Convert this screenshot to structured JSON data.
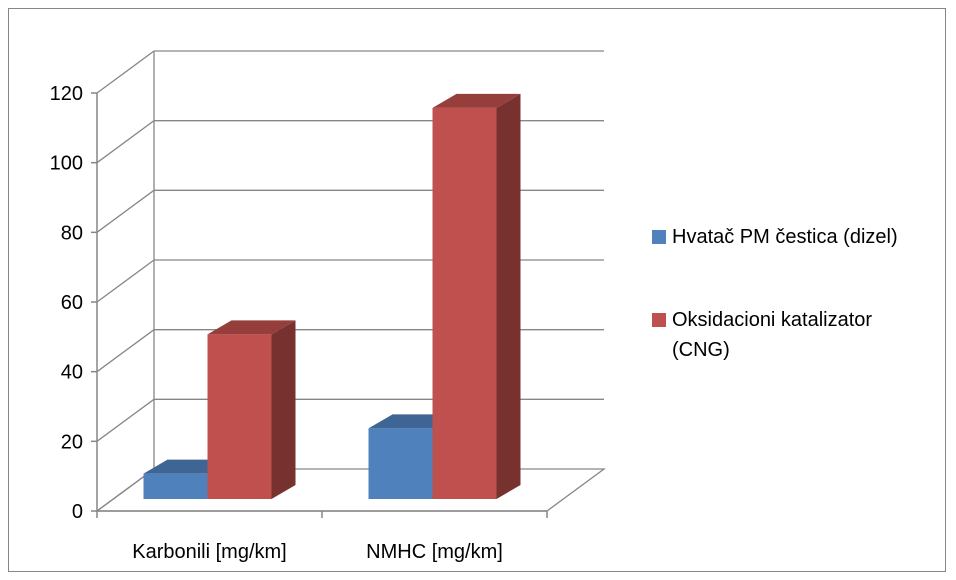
{
  "chart_data": {
    "type": "bar",
    "style": "3d-clustered-column",
    "categories": [
      "Karbonili [mg/km]",
      "NMHC [mg/km]"
    ],
    "series": [
      {
        "name": "Hvatač PM čestica (dizel)",
        "values": [
          9,
          22
        ],
        "color": "#4F81BD"
      },
      {
        "name": "Oksidacioni katalizator (CNG)",
        "values": [
          49,
          114
        ],
        "color": "#C0504D"
      }
    ],
    "legend_lines": [
      [
        "Hvatač PM čestica (dizel)"
      ],
      [
        "Oksidacioni katalizator",
        "(CNG)"
      ]
    ],
    "ylim": [
      0,
      120
    ],
    "yticks": [
      "0",
      "20",
      "40",
      "60",
      "80",
      "100",
      "120"
    ],
    "grid": true,
    "legend_position": "right"
  }
}
